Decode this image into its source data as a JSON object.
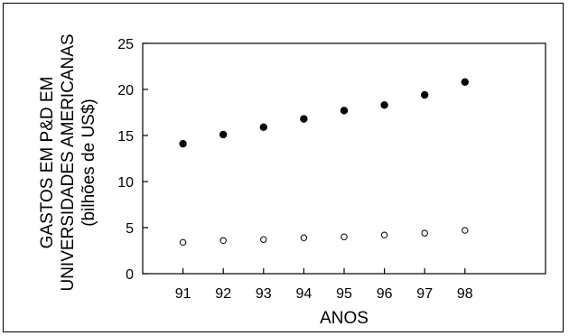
{
  "chart_data": {
    "type": "scatter",
    "title": "",
    "xlabel": "ANOS",
    "ylabel_lines": [
      "GASTOS EM P&D EM",
      "UNIVERSIDADES AMERICANAS",
      "(bilhões de US$)"
    ],
    "x": [
      91,
      92,
      93,
      94,
      95,
      96,
      97,
      98
    ],
    "xlim": [
      90,
      100
    ],
    "ylim": [
      0,
      25
    ],
    "yticks": [
      0,
      5,
      10,
      15,
      20,
      25
    ],
    "grid": false,
    "series": [
      {
        "marker": "filled-circle",
        "values": [
          14.1,
          15.1,
          15.9,
          16.8,
          17.7,
          18.3,
          19.4,
          20.8
        ]
      },
      {
        "marker": "open-circle",
        "values": [
          3.4,
          3.6,
          3.7,
          3.9,
          4.0,
          4.2,
          4.4,
          4.7
        ]
      }
    ],
    "colors": {
      "axis": "#000000",
      "marker": "#000000",
      "frame": "#000000"
    }
  }
}
